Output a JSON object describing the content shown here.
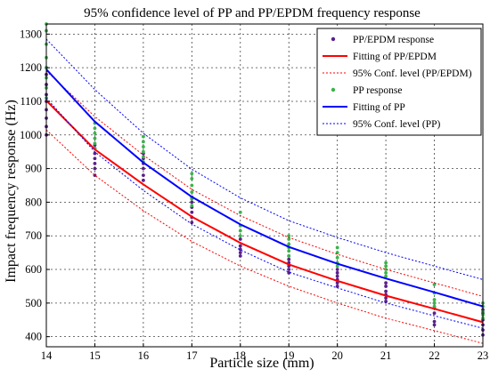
{
  "chart_data": {
    "type": "scatter",
    "title": "95% confidence level of PP and PP/EPDM frequency response",
    "xlabel": "Particle size (mm)",
    "ylabel": "Impact frequency response (Hz)",
    "xlim": [
      14,
      23
    ],
    "ylim": [
      370,
      1330
    ],
    "x_ticks": [
      14,
      15,
      16,
      17,
      18,
      19,
      20,
      21,
      22,
      23
    ],
    "y_ticks": [
      400,
      500,
      600,
      700,
      800,
      900,
      1000,
      1100,
      1200,
      1300
    ],
    "grid": true,
    "legend_position": "top-right",
    "legend": [
      {
        "label": "PP/EPDM response",
        "kind": "marker",
        "color": "#5b1f8c"
      },
      {
        "label": "Fitting of PP/EPDM",
        "kind": "line",
        "color": "#ff0000",
        "dash": "solid"
      },
      {
        "label": "95% Conf. level (PP/EPDM)",
        "kind": "line",
        "color": "#ff0000",
        "dash": "dotted"
      },
      {
        "label": "PP response",
        "kind": "marker",
        "color": "#3bb34a"
      },
      {
        "label": "Fitting of PP",
        "kind": "line",
        "color": "#0000ff",
        "dash": "solid"
      },
      {
        "label": "95% Conf. level (PP)",
        "kind": "line",
        "color": "#0000ff",
        "dash": "dotted"
      }
    ],
    "series": [
      {
        "name": "PP/EPDM response",
        "kind": "scatter",
        "color": "#5b1f8c",
        "points": [
          [
            14,
            1000
          ],
          [
            14,
            1025
          ],
          [
            14,
            1050
          ],
          [
            14,
            1075
          ],
          [
            14,
            1100
          ],
          [
            14,
            1120
          ],
          [
            14,
            1150
          ],
          [
            14,
            1180
          ],
          [
            14,
            1200
          ],
          [
            15,
            880
          ],
          [
            15,
            900
          ],
          [
            15,
            915
          ],
          [
            15,
            930
          ],
          [
            15,
            945
          ],
          [
            15,
            960
          ],
          [
            15,
            970
          ],
          [
            16,
            865
          ],
          [
            16,
            880
          ],
          [
            16,
            900
          ],
          [
            16,
            915
          ],
          [
            16,
            930
          ],
          [
            16,
            945
          ],
          [
            17,
            740
          ],
          [
            17,
            755
          ],
          [
            17,
            770
          ],
          [
            17,
            785
          ],
          [
            17,
            800
          ],
          [
            17,
            815
          ],
          [
            18,
            640
          ],
          [
            18,
            650
          ],
          [
            18,
            660
          ],
          [
            18,
            670
          ],
          [
            18,
            690
          ],
          [
            19,
            590
          ],
          [
            19,
            600
          ],
          [
            19,
            610
          ],
          [
            19,
            620
          ],
          [
            19,
            630
          ],
          [
            19,
            640
          ],
          [
            20,
            550
          ],
          [
            20,
            560
          ],
          [
            20,
            570
          ],
          [
            20,
            580
          ],
          [
            20,
            590
          ],
          [
            20,
            600
          ],
          [
            21,
            505
          ],
          [
            21,
            515
          ],
          [
            21,
            525
          ],
          [
            21,
            535
          ],
          [
            21,
            550
          ],
          [
            21,
            560
          ],
          [
            22,
            435
          ],
          [
            22,
            445
          ],
          [
            22,
            470
          ],
          [
            22,
            485
          ],
          [
            22,
            500
          ],
          [
            23,
            405
          ],
          [
            23,
            420
          ],
          [
            23,
            435
          ],
          [
            23,
            450
          ],
          [
            23,
            470
          ],
          [
            23,
            480
          ]
        ]
      },
      {
        "name": "PP response",
        "kind": "scatter",
        "color": "#3bb34a",
        "points": [
          [
            14,
            1110
          ],
          [
            14,
            1140
          ],
          [
            14,
            1170
          ],
          [
            14,
            1200
          ],
          [
            14,
            1230
          ],
          [
            14,
            1270
          ],
          [
            14,
            1310
          ],
          [
            14,
            1330
          ],
          [
            15,
            960
          ],
          [
            15,
            975
          ],
          [
            15,
            990
          ],
          [
            15,
            1005
          ],
          [
            15,
            1020
          ],
          [
            15,
            1035
          ],
          [
            16,
            920
          ],
          [
            16,
            935
          ],
          [
            16,
            950
          ],
          [
            16,
            965
          ],
          [
            16,
            980
          ],
          [
            16,
            995
          ],
          [
            17,
            790
          ],
          [
            17,
            810
          ],
          [
            17,
            830
          ],
          [
            17,
            850
          ],
          [
            17,
            870
          ],
          [
            17,
            885
          ],
          [
            18,
            700
          ],
          [
            18,
            715
          ],
          [
            18,
            730
          ],
          [
            18,
            770
          ],
          [
            19,
            640
          ],
          [
            19,
            655
          ],
          [
            19,
            665
          ],
          [
            19,
            675
          ],
          [
            19,
            690
          ],
          [
            19,
            700
          ],
          [
            20,
            610
          ],
          [
            20,
            620
          ],
          [
            20,
            635
          ],
          [
            20,
            650
          ],
          [
            20,
            665
          ],
          [
            21,
            580
          ],
          [
            21,
            590
          ],
          [
            21,
            600
          ],
          [
            21,
            610
          ],
          [
            21,
            620
          ],
          [
            22,
            490
          ],
          [
            22,
            500
          ],
          [
            22,
            510
          ],
          [
            22,
            530
          ],
          [
            22,
            555
          ],
          [
            23,
            455
          ],
          [
            23,
            465
          ],
          [
            23,
            475
          ],
          [
            23,
            490
          ],
          [
            23,
            500
          ]
        ]
      },
      {
        "name": "Fitting of PP/EPDM",
        "kind": "line",
        "color": "#ff0000",
        "dash": "solid",
        "x": [
          14,
          15,
          16,
          17,
          18,
          19,
          20,
          21,
          22,
          23
        ],
        "y": [
          1102,
          957,
          853,
          757,
          679,
          615,
          566,
          522,
          483,
          443
        ]
      },
      {
        "name": "95% Conf. level (PP/EPDM) upper",
        "kind": "line",
        "color": "#ff0000",
        "dash": "dotted",
        "x": [
          14,
          15,
          16,
          17,
          18,
          19,
          20,
          21,
          22,
          23
        ],
        "y": [
          1190,
          1055,
          940,
          838,
          760,
          695,
          645,
          600,
          560,
          520
        ]
      },
      {
        "name": "95% Conf. level (PP/EPDM) lower",
        "kind": "line",
        "color": "#ff0000",
        "dash": "dotted",
        "x": [
          14,
          15,
          16,
          17,
          18,
          19,
          20,
          21,
          22,
          23
        ],
        "y": [
          1015,
          880,
          775,
          683,
          610,
          550,
          500,
          455,
          418,
          380
        ]
      },
      {
        "name": "Fitting of PP",
        "kind": "line",
        "color": "#0000ff",
        "dash": "solid",
        "x": [
          14,
          15,
          16,
          17,
          18,
          19,
          20,
          21,
          22,
          23
        ],
        "y": [
          1195,
          1040,
          918,
          816,
          734,
          667,
          617,
          573,
          532,
          490
        ]
      },
      {
        "name": "95% Conf. level (PP) upper",
        "kind": "line",
        "color": "#0000ff",
        "dash": "dotted",
        "x": [
          14,
          15,
          16,
          17,
          18,
          19,
          20,
          21,
          22,
          23
        ],
        "y": [
          1285,
          1135,
          1005,
          898,
          813,
          745,
          695,
          650,
          610,
          570
        ]
      },
      {
        "name": "95% Conf. level (PP) lower",
        "kind": "line",
        "color": "#0000ff",
        "dash": "dotted",
        "x": [
          14,
          15,
          16,
          17,
          18,
          19,
          20,
          21,
          22,
          23
        ],
        "y": [
          1110,
          950,
          835,
          735,
          658,
          592,
          545,
          500,
          462,
          425
        ]
      }
    ]
  }
}
